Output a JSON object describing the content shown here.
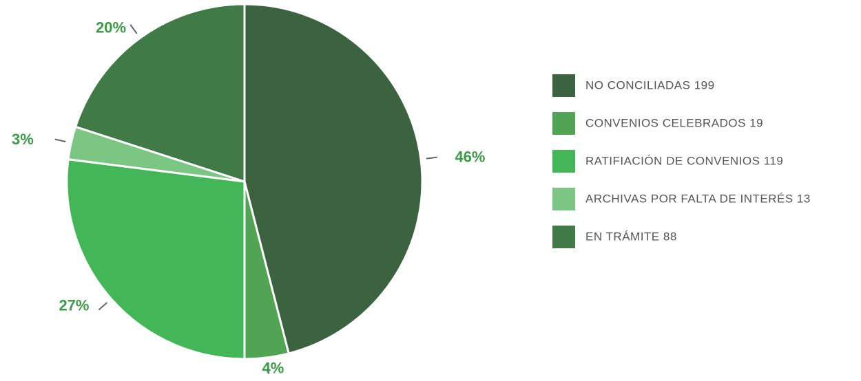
{
  "chart_data": {
    "type": "pie",
    "categories": [
      "NO CONCILIADAS 199",
      "CONVENIOS CELEBRADOS 19",
      "RATIFIACIÓN DE CONVENIOS 119",
      "ARCHIVAS POR FALTA DE INTERÉS 13",
      "EN TRÁMITE 88"
    ],
    "values": [
      46,
      4,
      27,
      3,
      20
    ],
    "value_labels": [
      "46%",
      "4%",
      "27%",
      "3%",
      "20%"
    ],
    "colors": [
      "#3c6340",
      "#52a455",
      "#43b757",
      "#7bc683",
      "#3f7a47"
    ],
    "legend": "right"
  }
}
